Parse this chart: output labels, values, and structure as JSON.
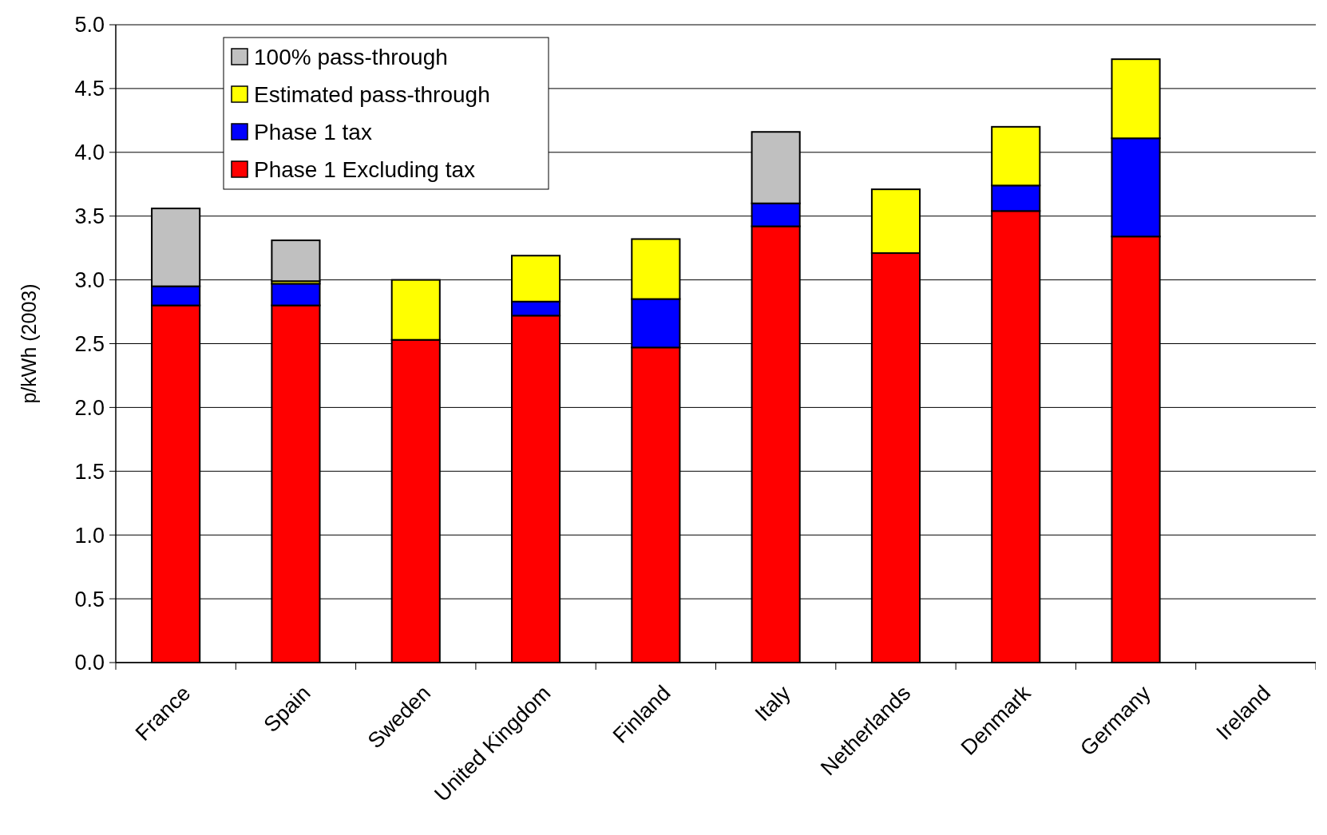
{
  "chart_data": {
    "type": "bar",
    "stacked": true,
    "ylabel": "p/kWh (2003)",
    "categories": [
      "France",
      "Spain",
      "Sweden",
      "United Kingdom",
      "Finland",
      "Italy",
      "Netherlands",
      "Denmark",
      "Germany",
      "Ireland"
    ],
    "series": [
      {
        "name": "Phase 1 Excluding tax",
        "color": "#ff0000",
        "values": [
          2.8,
          2.8,
          2.53,
          2.72,
          2.47,
          3.42,
          3.21,
          3.54,
          3.34,
          null
        ]
      },
      {
        "name": "Phase 1 tax",
        "color": "#0000ff",
        "values": [
          0.15,
          0.17,
          null,
          0.11,
          0.38,
          0.18,
          null,
          0.2,
          0.77,
          null
        ]
      },
      {
        "name": "Estimated pass-through",
        "color": "#ffff00",
        "values": [
          null,
          0.02,
          0.47,
          0.36,
          0.47,
          null,
          0.5,
          0.46,
          0.62,
          null
        ]
      },
      {
        "name": "100% pass-through",
        "color": "#c0c0c0",
        "values": [
          0.61,
          0.32,
          null,
          null,
          null,
          0.56,
          null,
          null,
          null,
          null
        ]
      }
    ],
    "ylim": [
      0,
      5
    ],
    "yticks": [
      {
        "value": 0,
        "label": "0.0"
      },
      {
        "value": 0.5,
        "label": "0.5"
      },
      {
        "value": 1,
        "label": "1.0"
      },
      {
        "value": 1.5,
        "label": "1.5"
      },
      {
        "value": 2,
        "label": "2.0"
      },
      {
        "value": 2.5,
        "label": "2.5"
      },
      {
        "value": 3,
        "label": "3.0"
      },
      {
        "value": 3.5,
        "label": "3.5"
      },
      {
        "value": 4,
        "label": "4.0"
      },
      {
        "value": 4.5,
        "label": "4.5"
      },
      {
        "value": 5,
        "label": "5.0"
      }
    ],
    "grid": "y",
    "legend": "top left"
  }
}
